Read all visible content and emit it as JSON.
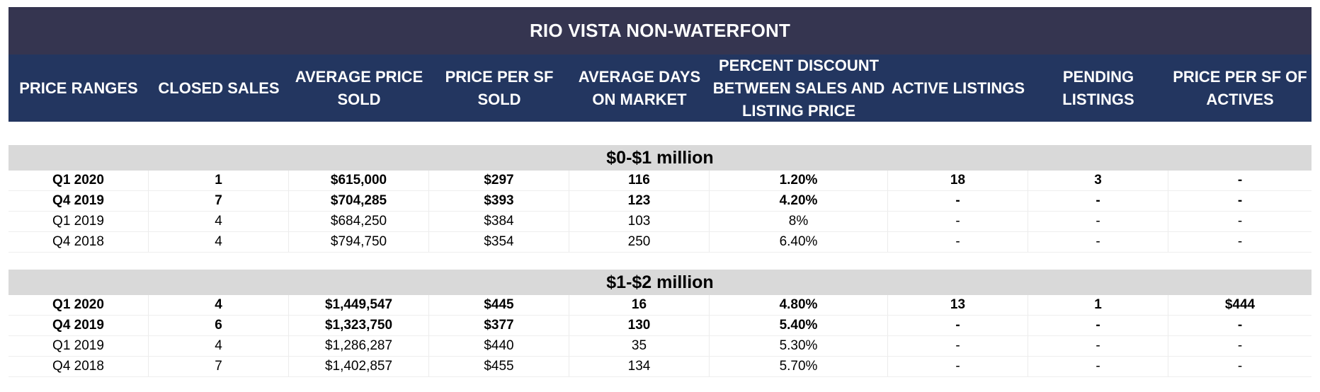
{
  "title": "RIO VISTA NON-WATERFONT",
  "headers": [
    "PRICE RANGES",
    "CLOSED SALES",
    "AVERAGE PRICE SOLD",
    "PRICE PER SF SOLD",
    "AVERAGE DAYS ON MARKET",
    "PERCENT DISCOUNT BETWEEN SALES AND LISTING PRICE",
    "ACTIVE LISTINGS",
    "PENDING LISTINGS",
    "PRICE PER SF OF ACTIVES"
  ],
  "sections": [
    {
      "label": "$0-$1 million",
      "rows": [
        [
          "Q1 2020",
          "1",
          "$615,000",
          "$297",
          "116",
          "1.20%",
          "18",
          "3",
          "-"
        ],
        [
          "Q4 2019",
          "7",
          "$704,285",
          "$393",
          "123",
          "4.20%",
          "-",
          "-",
          "-"
        ],
        [
          "Q1 2019",
          "4",
          "$684,250",
          "$384",
          "103",
          "8%",
          "-",
          "-",
          "-"
        ],
        [
          "Q4 2018",
          "4",
          "$794,750",
          "$354",
          "250",
          "6.40%",
          "-",
          "-",
          "-"
        ]
      ]
    },
    {
      "label": "$1-$2 million",
      "rows": [
        [
          "Q1 2020",
          "4",
          "$1,449,547",
          "$445",
          "16",
          "4.80%",
          "13",
          "1",
          "$444"
        ],
        [
          "Q4 2019",
          "6",
          "$1,323,750",
          "$377",
          "130",
          "5.40%",
          "-",
          "-",
          "-"
        ],
        [
          "Q1 2019",
          "4",
          "$1,286,287",
          "$440",
          "35",
          "5.30%",
          "-",
          "-",
          "-"
        ],
        [
          "Q4 2018",
          "7",
          "$1,402,857",
          "$455",
          "134",
          "5.70%",
          "-",
          "-",
          "-"
        ]
      ]
    }
  ],
  "colors": {
    "title_bg": "#353550",
    "header_bg": "#233660",
    "section_bg": "#d9d9d9"
  }
}
